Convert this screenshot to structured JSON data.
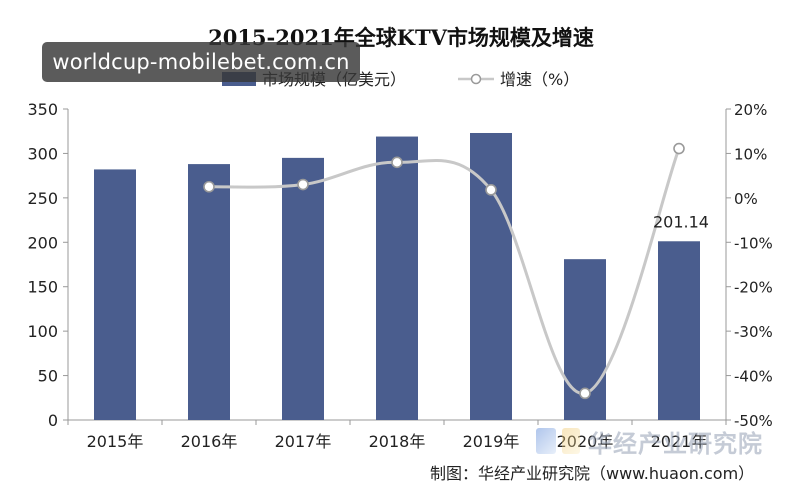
{
  "chart_data": {
    "type": "bar",
    "title": "2015-2021年全球KTV市场规模及增速",
    "categories": [
      "2015年",
      "2016年",
      "2017年",
      "2018年",
      "2019年",
      "2020年",
      "2021年"
    ],
    "series": [
      {
        "name": "市场规模（亿美元）",
        "type": "bar",
        "axis": "left",
        "color": "#4a5d8e",
        "values": [
          282,
          288,
          295,
          319,
          323,
          181,
          201.14
        ]
      },
      {
        "name": "增速（%）",
        "type": "line",
        "axis": "right",
        "color": "#c8c8c8",
        "values": [
          null,
          2.5,
          3.0,
          8.0,
          1.8,
          -44.0,
          11.1
        ]
      }
    ],
    "y_left": {
      "min": 0,
      "max": 350,
      "step": 50,
      "ticks": [
        "0",
        "50",
        "100",
        "150",
        "200",
        "250",
        "300",
        "350"
      ]
    },
    "y_right": {
      "min": -50,
      "max": 20,
      "step": 10,
      "ticks": [
        "-50%",
        "-40%",
        "-30%",
        "-20%",
        "-10%",
        "0%",
        "10%",
        "20%"
      ]
    },
    "data_labels": [
      {
        "category": "2021年",
        "text": "201.14"
      }
    ],
    "legend_position": "top-center",
    "grid": false
  },
  "source": "制图：华经产业研究院（www.huaon.com）",
  "watermark": {
    "url": "worldcup-mobilebet.com.cn",
    "logo_text": "华经产业研究院"
  }
}
